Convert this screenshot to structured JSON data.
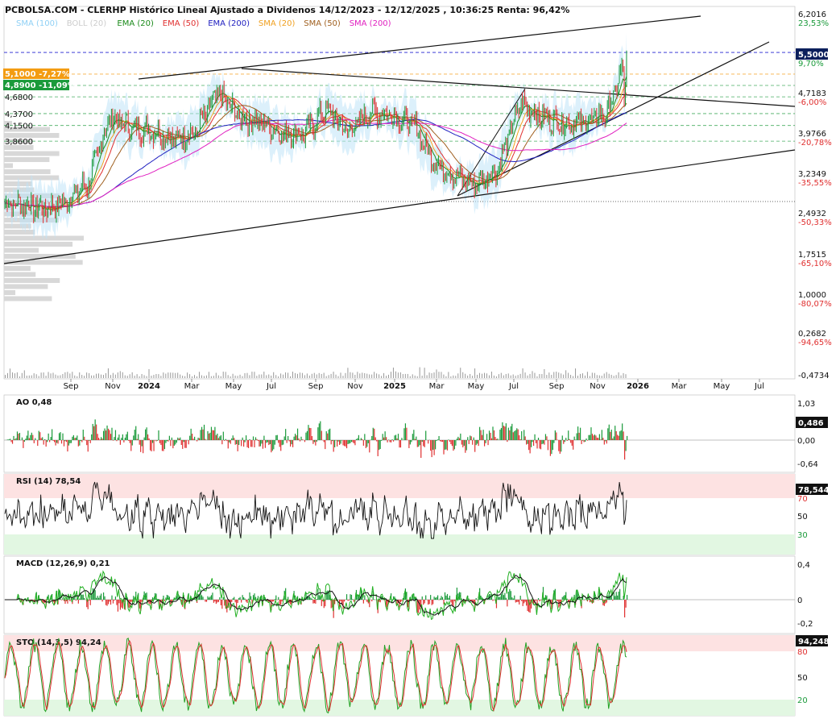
{
  "header": {
    "title": "PCBOLSA.COM - CLERHP Histórico Lineal Ajustado a Dividenos 14/12/2023 - 12/12/2025 , 10:36:25 Renta: 96,42%",
    "indicators": [
      {
        "label": "SMA (100)",
        "color": "#8fd0f5"
      },
      {
        "label": "BOLL (20)",
        "color": "#cccccc"
      },
      {
        "label": "EMA (20)",
        "color": "#1a8a1a"
      },
      {
        "label": "EMA (50)",
        "color": "#e03030"
      },
      {
        "label": "EMA (200)",
        "color": "#2020c0"
      },
      {
        "label": "SMA (20)",
        "color": "#f0a020"
      },
      {
        "label": "SMA (50)",
        "color": "#a06020"
      },
      {
        "label": "SMA (200)",
        "color": "#e020c0"
      }
    ]
  },
  "price_labels_left": [
    {
      "text": "5,1000 -7,27%",
      "value": 5.1,
      "bg": "#f39c12"
    },
    {
      "text": "4,8900 -11,09%",
      "value": 4.89,
      "bg": "#1a9a3a"
    },
    {
      "text": "4,6800",
      "value": 4.68
    },
    {
      "text": "4,3700",
      "value": 4.37
    },
    {
      "text": "4,1500",
      "value": 4.15
    },
    {
      "text": "3,8600",
      "value": 3.86
    }
  ],
  "price_axis": {
    "ticks": [
      {
        "value": "6,2016",
        "pct": "23,53%",
        "pct_color": "#1a9a3a"
      },
      {
        "value": "5,5000",
        "pct": "9,70%",
        "pct_color": "#1a9a3a",
        "highlight": true
      },
      {
        "value": "4,7183",
        "pct": "-6,00%",
        "pct_color": "#e03030"
      },
      {
        "value": "3,9766",
        "pct": "-20,78%",
        "pct_color": "#e03030"
      },
      {
        "value": "3,2349",
        "pct": "-35,55%",
        "pct_color": "#e03030"
      },
      {
        "value": "2,4932",
        "pct": "-50,33%",
        "pct_color": "#e03030"
      },
      {
        "value": "1,7515",
        "pct": "-65,10%",
        "pct_color": "#e03030"
      },
      {
        "value": "1,0000",
        "pct": "-80,07%",
        "pct_color": "#e03030"
      },
      {
        "value": "0,2682",
        "pct": "-94,65%",
        "pct_color": "#e03030"
      },
      {
        "value": "-0,4734",
        "pct": "",
        "pct_color": "#e03030"
      }
    ]
  },
  "time_axis": [
    "Sep",
    "Nov",
    "2024",
    "Mar",
    "May",
    "Jul",
    "Sep",
    "Nov",
    "2025",
    "Mar",
    "May",
    "Jul",
    "Sep",
    "Nov",
    "2026",
    "Mar",
    "May",
    "Jul"
  ],
  "panels": {
    "ao": {
      "label": "AO",
      "value": "0,48",
      "badge": "0,486",
      "ticks": [
        "1,03",
        "0,00",
        "-0,64"
      ]
    },
    "rsi": {
      "label": "RSI (14)",
      "value": "78,54",
      "badge": "78,544",
      "ticks": [
        "70",
        "50",
        "30"
      ]
    },
    "macd": {
      "label": "MACD (12,26,9)",
      "value": "0,21",
      "ticks": [
        "0,4",
        "0",
        "-0,2"
      ]
    },
    "sto": {
      "label": "STO (14,3,5)",
      "value": "94,24",
      "badge": "94,248",
      "ticks": [
        "80",
        "50",
        "20"
      ]
    }
  },
  "chart_data": {
    "type": "line",
    "title": "CLERHP Histórico Lineal Ajustado a Dividenos 14/12/2023 - 12/12/2025",
    "x_start": "2023-12-14",
    "x_end": "2025-12-12",
    "price_series": {
      "name": "CLERHP",
      "x": [
        "2023-08",
        "2023-09",
        "2023-10",
        "2023-11",
        "2023-12",
        "2024-01",
        "2024-02",
        "2024-03",
        "2024-04",
        "2024-05",
        "2024-06",
        "2024-07",
        "2024-08",
        "2024-09",
        "2024-10",
        "2024-11",
        "2024-12",
        "2025-01",
        "2025-02",
        "2025-03",
        "2025-04",
        "2025-05",
        "2025-06",
        "2025-07",
        "2025-08",
        "2025-09",
        "2025-10",
        "2025-11",
        "2025-12"
      ],
      "y": [
        2.7,
        2.6,
        2.75,
        3.1,
        4.3,
        4.1,
        4.05,
        3.9,
        4.05,
        4.75,
        4.3,
        4.2,
        4.0,
        4.0,
        4.45,
        4.05,
        4.4,
        4.35,
        4.15,
        3.5,
        3.2,
        3.05,
        3.4,
        4.55,
        4.3,
        4.2,
        4.2,
        4.4,
        5.5
      ]
    },
    "last_price": 5.5,
    "levels": [
      5.1,
      4.89,
      4.68,
      4.37,
      4.15,
      3.86
    ],
    "ylim": [
      -0.4734,
      6.2016
    ]
  }
}
